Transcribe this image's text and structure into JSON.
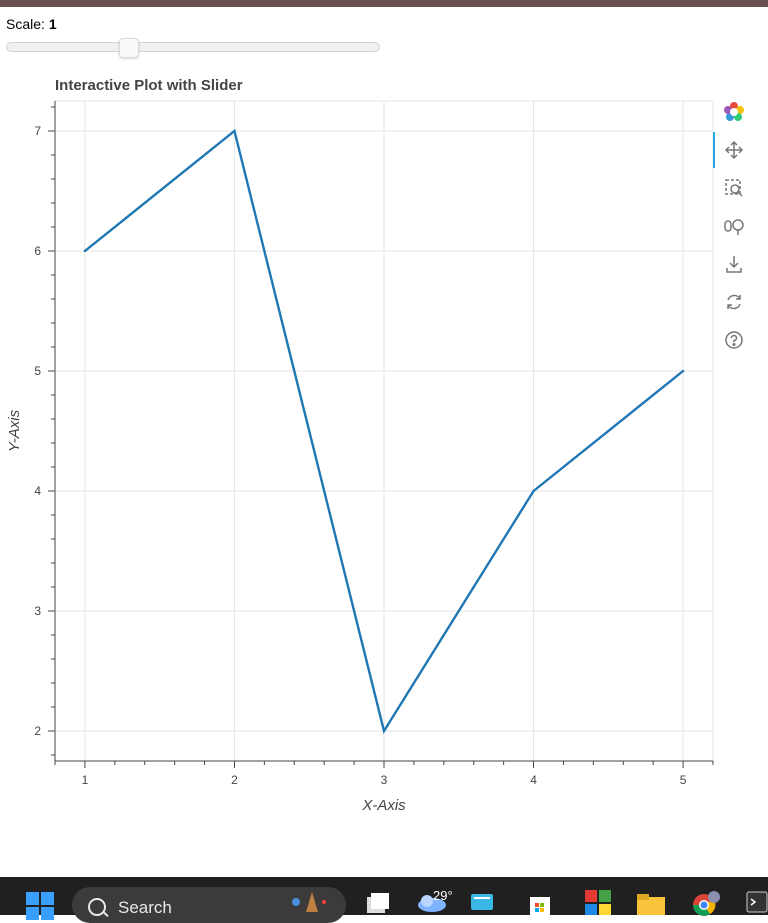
{
  "slider": {
    "label": "Scale:",
    "value": "1",
    "fraction": 0.33
  },
  "toolbar": {
    "tools": [
      {
        "name": "bokeh-logo-icon"
      },
      {
        "name": "pan-icon"
      },
      {
        "name": "box-zoom-icon"
      },
      {
        "name": "wheel-zoom-icon"
      },
      {
        "name": "save-icon"
      },
      {
        "name": "reset-icon"
      },
      {
        "name": "help-icon"
      }
    ],
    "active": "pan-icon"
  },
  "taskbar": {
    "search_placeholder": "Search",
    "weather_temp": "29°"
  },
  "colors": {
    "line": "#1f77b4",
    "grid": "#e5e5e5",
    "axis": "#444444"
  },
  "chart_data": {
    "type": "line",
    "title": "Interactive Plot with Slider",
    "xlabel": "X-Axis",
    "ylabel": "Y-Axis",
    "x": [
      1,
      2,
      3,
      4,
      5
    ],
    "y": [
      6,
      7,
      2,
      4,
      5
    ],
    "xlim": [
      0.8,
      5.2
    ],
    "ylim": [
      1.75,
      7.25
    ],
    "xticks": [
      "1",
      "2",
      "3",
      "4",
      "5"
    ],
    "yticks": [
      "2",
      "3",
      "4",
      "5",
      "6",
      "7"
    ],
    "grid": true,
    "legend": "none"
  }
}
